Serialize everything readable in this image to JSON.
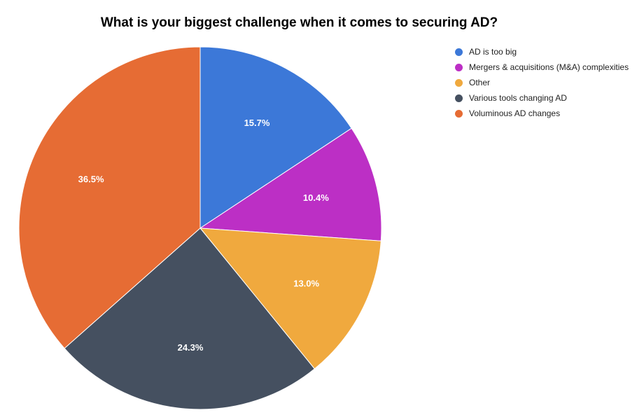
{
  "chart_data": {
    "type": "pie",
    "title": "What is your biggest challenge when it comes to securing AD?",
    "legend_position": "top-right",
    "start_angle_deg": 0,
    "direction": "clockwise",
    "slices": [
      {
        "label": "AD is too big",
        "value": 15.7,
        "display": "15.7%",
        "color": "#3c78d8"
      },
      {
        "label": "Mergers & acquisitions (M&A) complexities",
        "value": 10.4,
        "display": "10.4%",
        "color": "#bc2fc5"
      },
      {
        "label": "Other",
        "value": 13.0,
        "display": "13.0%",
        "color": "#f0a93e"
      },
      {
        "label": "Various tools changing AD",
        "value": 24.3,
        "display": "24.3%",
        "color": "#455060"
      },
      {
        "label": "Voluminous AD changes",
        "value": 36.5,
        "display": "36.5%",
        "color": "#e66c34"
      }
    ]
  }
}
